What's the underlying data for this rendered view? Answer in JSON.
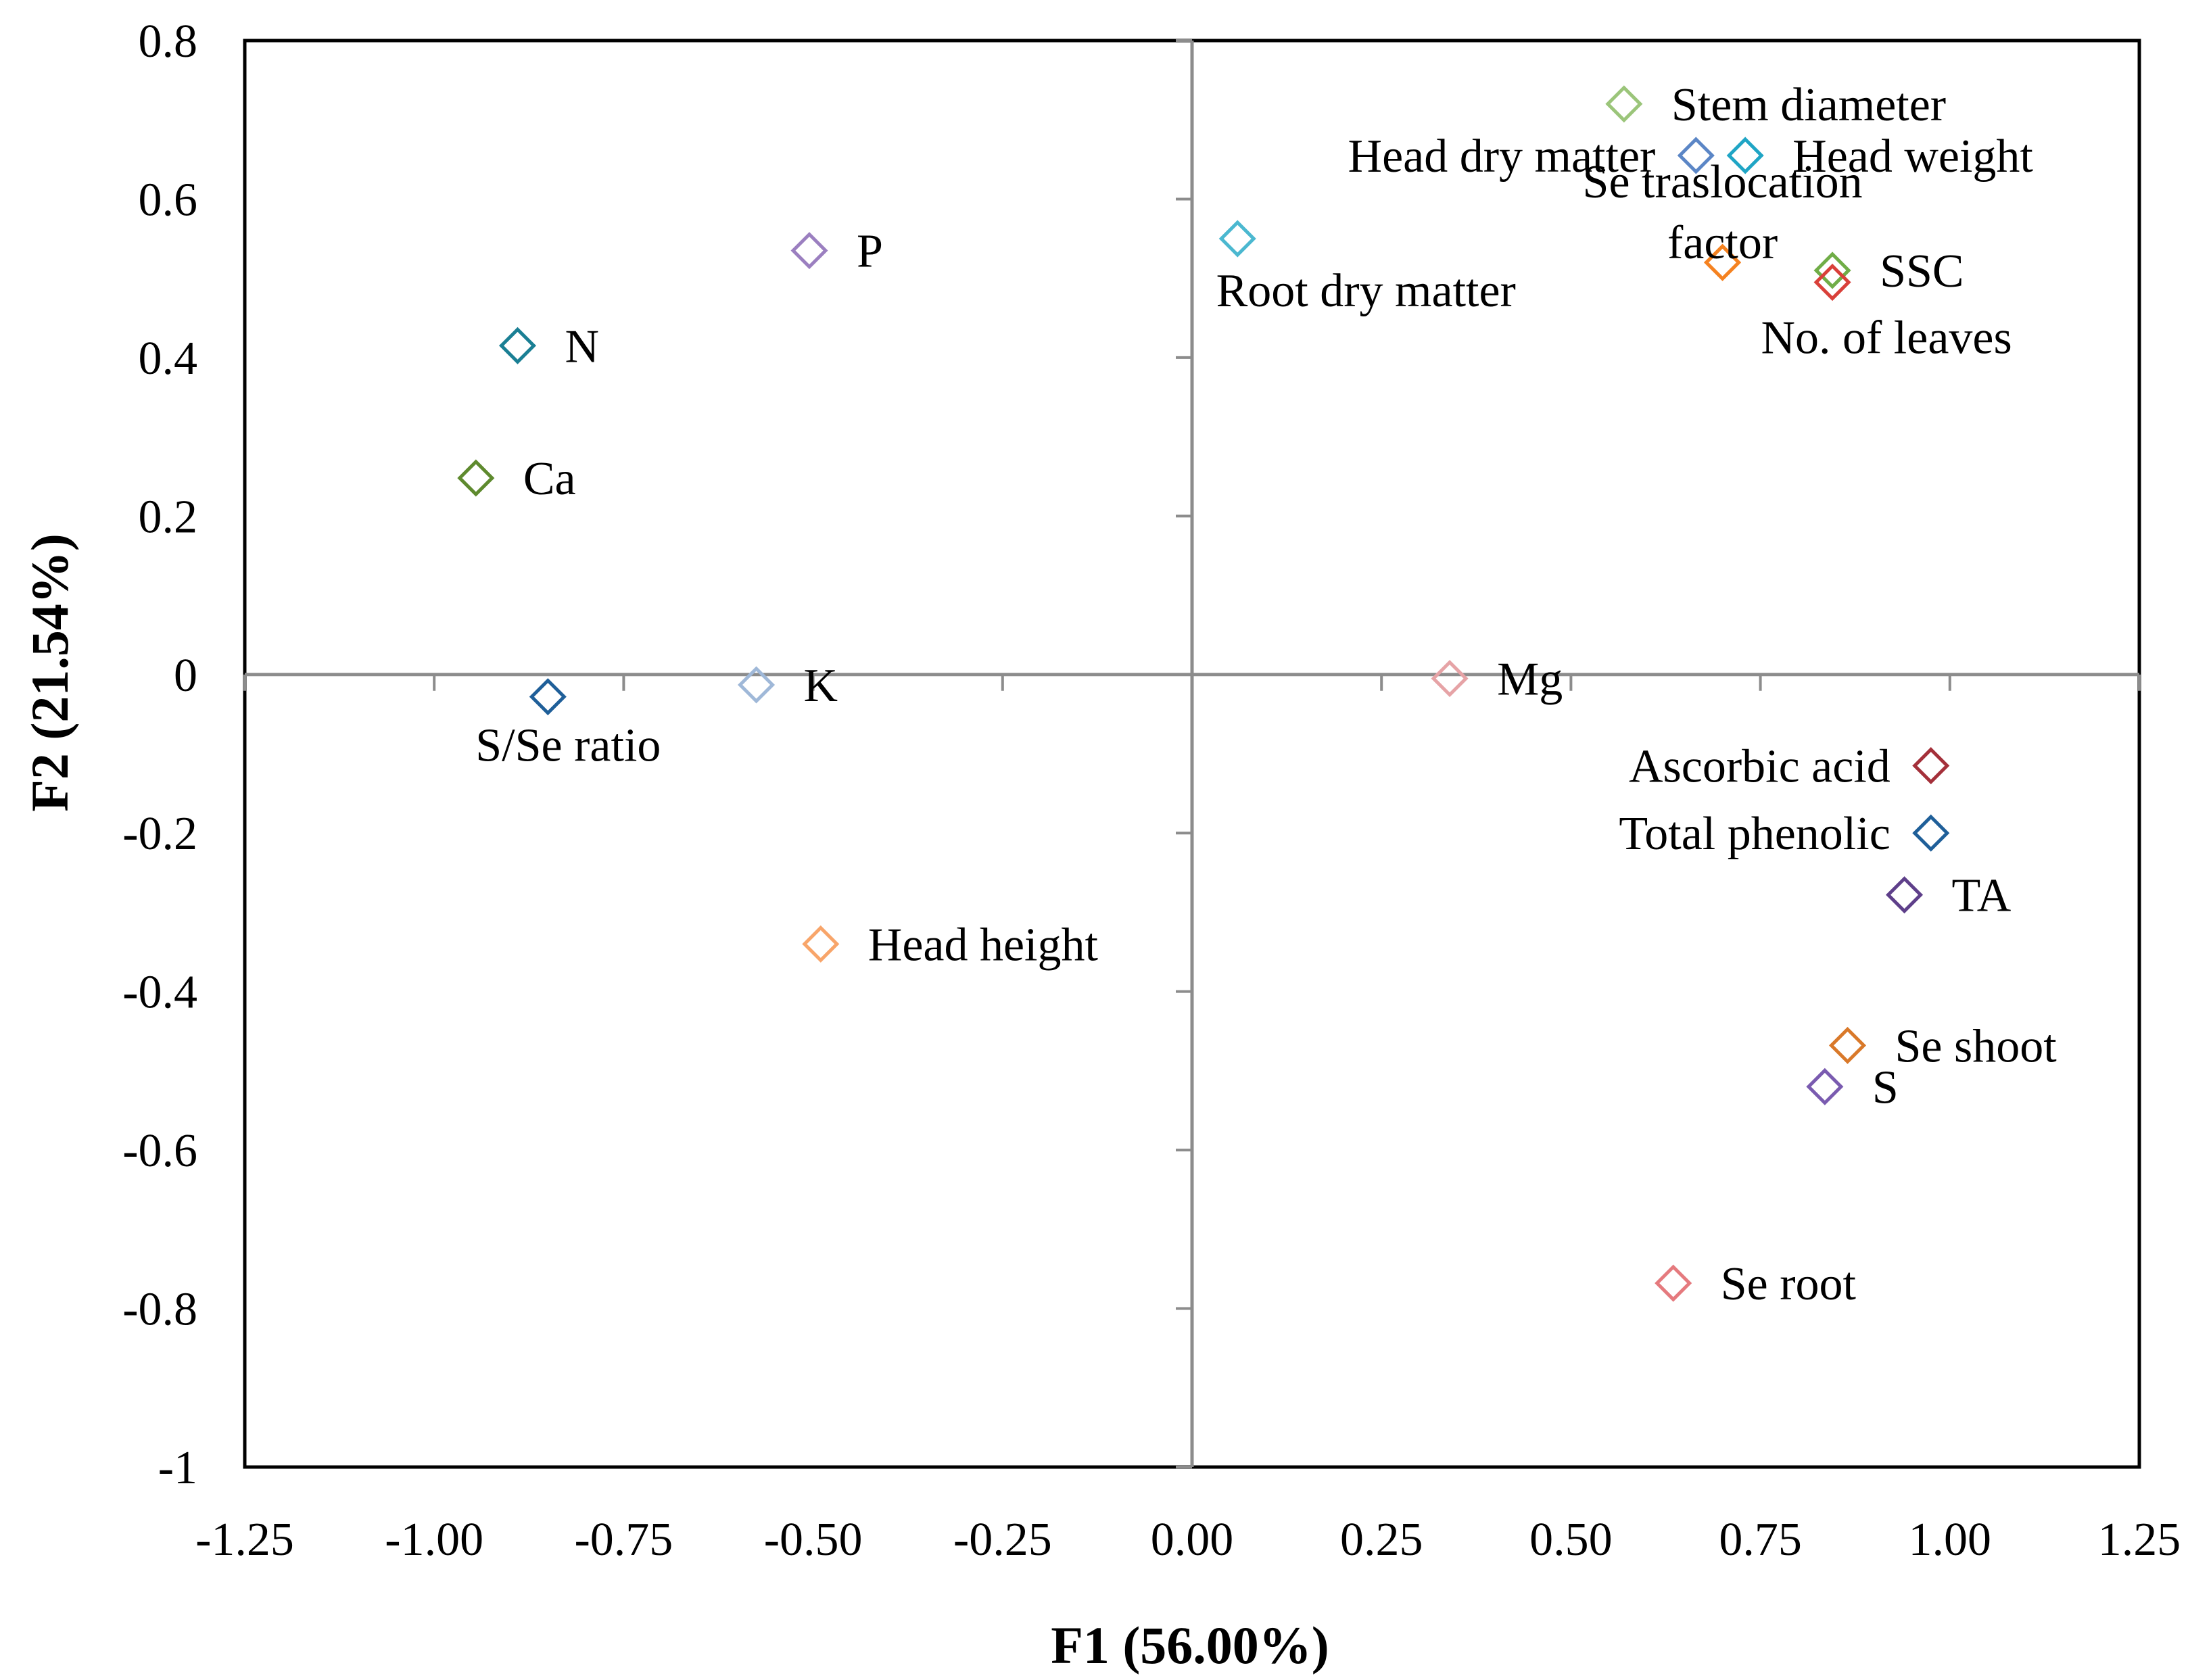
{
  "chart_data": {
    "type": "scatter",
    "title": "",
    "xlabel": "F1 (56.00%)",
    "ylabel": "F2 (21.54%)",
    "xlim": [
      -1.25,
      1.25
    ],
    "ylim": [
      -1,
      0.8
    ],
    "xticks": [
      -1.25,
      -1.0,
      -0.75,
      -0.5,
      -0.25,
      0.0,
      0.25,
      0.5,
      0.75,
      1.0,
      1.25
    ],
    "xtick_labels": [
      "-1.25",
      "-1.00",
      "-0.75",
      "-0.50",
      "-0.25",
      "0.00",
      "0.25",
      "0.50",
      "0.75",
      "1.00",
      "1.25"
    ],
    "yticks": [
      0.8,
      0.6,
      0.4,
      0.2,
      0,
      -0.2,
      -0.4,
      -0.6,
      -0.8,
      -1
    ],
    "ytick_labels": [
      "0.8",
      "0.6",
      "0.4",
      "0.2",
      "0",
      "-0.2",
      "-0.4",
      "-0.6",
      "-0.8",
      "-1"
    ],
    "grid": false,
    "marker": "diamond-open",
    "points": [
      {
        "name": "Stem diameter",
        "x": 0.57,
        "y": 0.72,
        "color": "#9BC57A",
        "label_pos": "right"
      },
      {
        "name": "Head dry matter",
        "x": 0.665,
        "y": 0.655,
        "color": "#5B86C6",
        "label_pos": "left"
      },
      {
        "name": "Head weight",
        "x": 0.73,
        "y": 0.655,
        "color": "#1FA5C5",
        "label_pos": "right"
      },
      {
        "name": "Se traslocation",
        "x": 0.7,
        "y": 0.52,
        "color": "#F58220",
        "label_pos": "above-2"
      },
      {
        "name": "factor",
        "x": 0.7,
        "y": 0.52,
        "color": "#F58220",
        "label_pos": "above-1"
      },
      {
        "name": "SSC",
        "x": 0.845,
        "y": 0.51,
        "color": "#70AD47",
        "label_pos": "right"
      },
      {
        "name": "No. of leaves",
        "x": 0.845,
        "y": 0.495,
        "color": "#D9403A",
        "label_pos": "below"
      },
      {
        "name": "Root dry matter",
        "x": 0.06,
        "y": 0.55,
        "color": "#4BB8D0",
        "label_pos": "below"
      },
      {
        "name": "P",
        "x": -0.505,
        "y": 0.535,
        "color": "#9B7FC0",
        "label_pos": "right"
      },
      {
        "name": "N",
        "x": -0.89,
        "y": 0.415,
        "color": "#1A7F94",
        "label_pos": "right"
      },
      {
        "name": "Ca",
        "x": -0.945,
        "y": 0.248,
        "color": "#5E8A2E",
        "label_pos": "right"
      },
      {
        "name": "S/Se ratio",
        "x": -0.85,
        "y": -0.028,
        "color": "#1F5F99",
        "label_pos": "below"
      },
      {
        "name": "K",
        "x": -0.575,
        "y": -0.013,
        "color": "#9FB8D8",
        "label_pos": "right"
      },
      {
        "name": "Mg",
        "x": 0.34,
        "y": -0.005,
        "color": "#E6A3A6",
        "label_pos": "right"
      },
      {
        "name": "Ascorbic acid",
        "x": 0.975,
        "y": -0.115,
        "color": "#A4303A",
        "label_pos": "left"
      },
      {
        "name": "Total phenolic",
        "x": 0.975,
        "y": -0.2,
        "color": "#1F5F99",
        "label_pos": "left"
      },
      {
        "name": "TA",
        "x": 0.94,
        "y": -0.278,
        "color": "#5E3F8A",
        "label_pos": "right"
      },
      {
        "name": "Head height",
        "x": -0.49,
        "y": -0.34,
        "color": "#F8A56A",
        "label_pos": "right"
      },
      {
        "name": "Se shoot",
        "x": 0.865,
        "y": -0.468,
        "color": "#D9792A",
        "label_pos": "right"
      },
      {
        "name": "S",
        "x": 0.835,
        "y": -0.52,
        "color": "#7A5BB0",
        "label_pos": "right"
      },
      {
        "name": "Se root",
        "x": 0.635,
        "y": -0.768,
        "color": "#E57A7E",
        "label_pos": "right"
      }
    ]
  }
}
